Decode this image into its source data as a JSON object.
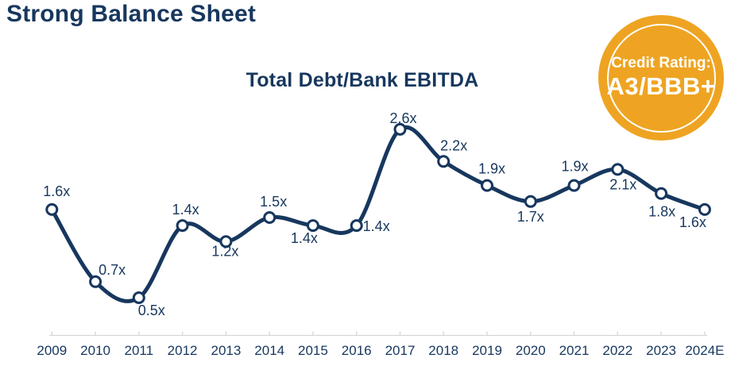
{
  "page": {
    "title": "Strong Balance Sheet"
  },
  "badge": {
    "line1": "Credit Rating:",
    "line2": "A3/BBB+",
    "bg_color": "#EEA422",
    "ring_color": "#FFFFFF",
    "text_color": "#FFFFFF"
  },
  "chart_data": {
    "type": "line",
    "title": "Total Debt/Bank EBITDA",
    "categories": [
      "2009",
      "2010",
      "2011",
      "2012",
      "2013",
      "2014",
      "2015",
      "2016",
      "2017",
      "2018",
      "2019",
      "2020",
      "2021",
      "2022",
      "2023",
      "2024E"
    ],
    "values": [
      1.6,
      0.7,
      0.5,
      1.4,
      1.2,
      1.5,
      1.4,
      1.4,
      2.6,
      2.2,
      1.9,
      1.7,
      1.9,
      2.1,
      1.8,
      1.6
    ],
    "point_labels": [
      "1.6x",
      "0.7x",
      "0.5x",
      "1.4x",
      "1.2x",
      "1.5x",
      "1.4x",
      "1.4x",
      "2.6x",
      "2.2x",
      "1.9x",
      "1.7x",
      "1.9x",
      "2.1x",
      "1.8x",
      "1.6x"
    ],
    "xlabel": "",
    "ylabel": "",
    "ylim": [
      0,
      3
    ],
    "grid": false,
    "legend": false,
    "smooth": true,
    "line_color": "#17375E",
    "marker_fill": "#FFFFFF",
    "axis_color": "#D6D6D6",
    "label_color": "#17375E"
  }
}
